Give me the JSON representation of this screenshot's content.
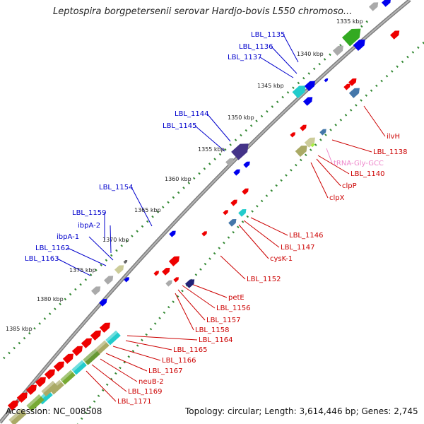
{
  "title": "Leptospira borgpetersenii serovar Hardjo-bovis L550 chromoso...",
  "footer": {
    "accession": "Accession: NC_008508",
    "summary": "Topology: circular; Length: 3,614,446 bp; Genes: 2,745"
  },
  "colors": {
    "backbone": "#7f7f7f",
    "forward_label": "#0000cc",
    "reverse_label": "#cc0000",
    "trna_label": "#ee88cc",
    "forward_gene": "#0000ee",
    "reverse_gene": "#ee0000",
    "cog_green": "#33aa22",
    "dotted_green": "#338833"
  },
  "ticks": [
    "1335 kbp",
    "1340 kbp",
    "1345 kbp",
    "1350 kbp",
    "1355 kbp",
    "1360 kbp",
    "1365 kbp",
    "1370 kbp",
    "1375 kbp",
    "1380 kbp",
    "1385 kbp"
  ],
  "forward_labels": [
    "LBL_1135",
    "LBL_1136",
    "LBL_1137",
    "LBL_1144",
    "LBL_1145",
    "LBL_1154",
    "LBL_1159",
    "ibpA-2",
    "ibpA-1",
    "LBL_1162",
    "LBL_1163"
  ],
  "reverse_labels": [
    "ilvH",
    "LBL_1138",
    "tRNA-Gly-GCC",
    "LBL_1140",
    "clpP",
    "clpX",
    "LBL_1146",
    "LBL_1147",
    "cysK-1",
    "LBL_1152",
    "petE",
    "LBL_1156",
    "LBL_1157",
    "LBL_1158",
    "LBL_1164",
    "LBL_1165",
    "LBL_1166",
    "LBL_1167",
    "neuB-2",
    "LBL_1169",
    "LBL_1171"
  ]
}
